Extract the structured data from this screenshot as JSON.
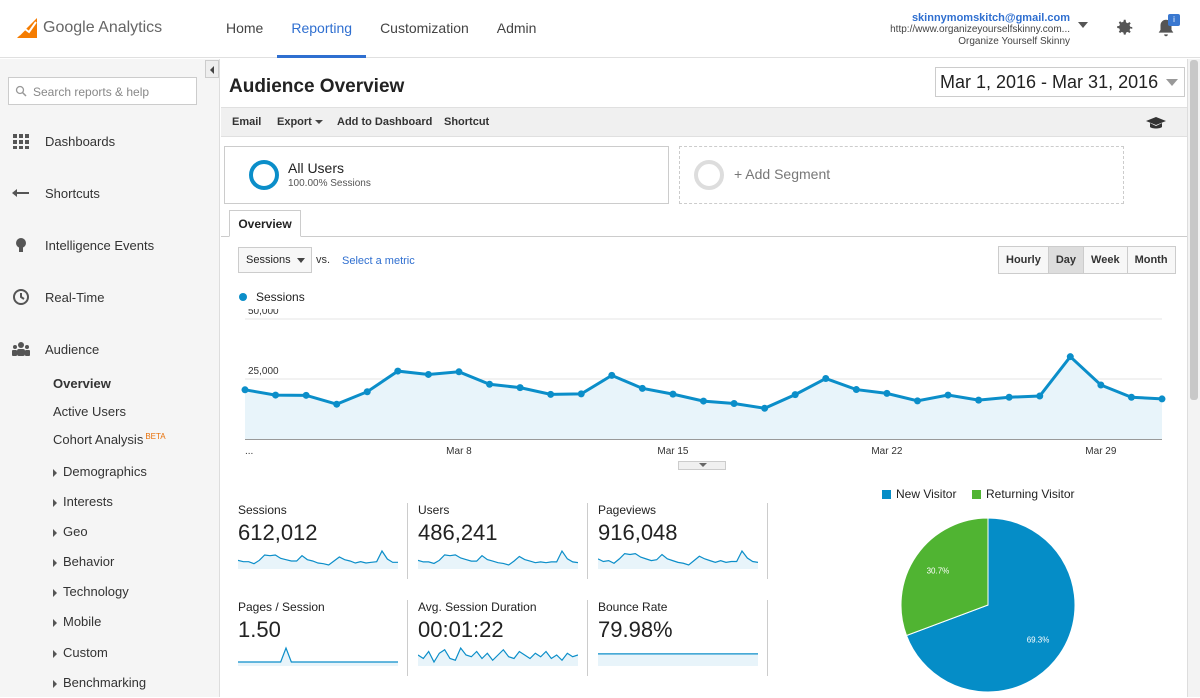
{
  "app": {
    "name": "Google Analytics",
    "tabs": [
      {
        "label": "Home"
      },
      {
        "label": "Reporting"
      },
      {
        "label": "Customization"
      },
      {
        "label": "Admin"
      }
    ]
  },
  "account": {
    "email": "skinnymomskitch@gmail.com",
    "url": "http://www.organizeyourselfskinny.com...",
    "property": "Organize Yourself Skinny"
  },
  "notification": {
    "badge": "i"
  },
  "sidebar": {
    "search_placeholder": "Search reports & help",
    "items": [
      {
        "label": "Dashboards",
        "icon": "grid-icon"
      },
      {
        "label": "Shortcuts",
        "icon": "arrow-left-icon"
      },
      {
        "label": "Intelligence Events",
        "icon": "lightbulb-icon"
      },
      {
        "label": "Real-Time",
        "icon": "clock-icon"
      },
      {
        "label": "Audience",
        "icon": "people-icon"
      }
    ],
    "sub_items": [
      {
        "label": "Overview"
      },
      {
        "label": "Active Users"
      },
      {
        "label": "Cohort Analysis",
        "badge": "BETA"
      },
      {
        "label": "Demographics"
      },
      {
        "label": "Interests"
      },
      {
        "label": "Geo"
      },
      {
        "label": "Behavior"
      },
      {
        "label": "Technology"
      },
      {
        "label": "Mobile"
      },
      {
        "label": "Custom"
      },
      {
        "label": "Benchmarking"
      }
    ]
  },
  "page": {
    "title": "Audience Overview",
    "date_range": "Mar 1, 2016 - Mar 31, 2016"
  },
  "toolbar": {
    "email": "Email",
    "export": "Export",
    "add_to_dashboard": "Add to Dashboard",
    "shortcut": "Shortcut"
  },
  "segments": {
    "active": {
      "name": "All Users",
      "sub": "100.00% Sessions"
    },
    "add_label": "+ Add Segment"
  },
  "tabs": {
    "overview": "Overview"
  },
  "controls": {
    "metric_selected": "Sessions",
    "vs": "vs.",
    "select_metric": "Select a metric",
    "granularity": [
      "Hourly",
      "Day",
      "Week",
      "Month"
    ],
    "granularity_active": "Day"
  },
  "chart_data": [
    {
      "type": "area",
      "series": [
        {
          "name": "Sessions",
          "values": [
            20500,
            18300,
            18200,
            14500,
            19700,
            28300,
            26900,
            28000,
            22800,
            21400,
            18600,
            18800,
            26500,
            21100,
            18700,
            15800,
            14800,
            12800,
            18500,
            25200,
            20600,
            19000,
            15900,
            18300,
            16200,
            17400,
            17900,
            34300,
            22500,
            17400,
            16700
          ]
        }
      ],
      "x_labels": [
        "...",
        "Mar 8",
        "Mar 15",
        "Mar 22",
        "Mar 29"
      ],
      "x_label_days": [
        1,
        8,
        15,
        22,
        29
      ],
      "y_ticks": [
        {
          "value": 50000,
          "label": "50,000"
        },
        {
          "value": 25000,
          "label": "25,000"
        }
      ],
      "ylim": [
        0,
        50000
      ],
      "color": "#0b8ec9",
      "fill": "#e8f4fa"
    },
    {
      "type": "pie",
      "slices": [
        {
          "name": "New Visitor",
          "value": 69.3,
          "label": "69.3%",
          "color": "#058dc7"
        },
        {
          "name": "Returning Visitor",
          "value": 30.7,
          "label": "30.7%",
          "color": "#50b432"
        }
      ]
    }
  ],
  "stats": [
    {
      "label": "Sessions",
      "value": "612,012",
      "spark": [
        20,
        18,
        18,
        15,
        20,
        28,
        27,
        28,
        23,
        21,
        19,
        19,
        27,
        21,
        19,
        16,
        15,
        13,
        19,
        25,
        21,
        19,
        16,
        18,
        16,
        17,
        18,
        34,
        22,
        17,
        17
      ]
    },
    {
      "label": "Users",
      "value": "486,241",
      "spark": [
        19,
        17,
        17,
        15,
        19,
        26,
        25,
        26,
        22,
        20,
        18,
        18,
        25,
        20,
        18,
        16,
        15,
        13,
        18,
        24,
        20,
        18,
        16,
        17,
        16,
        17,
        17,
        31,
        21,
        17,
        16
      ]
    },
    {
      "label": "Pageviews",
      "value": "916,048",
      "spark": [
        21,
        18,
        19,
        16,
        21,
        27,
        26,
        27,
        23,
        21,
        19,
        20,
        26,
        21,
        19,
        17,
        16,
        14,
        19,
        24,
        21,
        19,
        17,
        19,
        17,
        18,
        18,
        30,
        22,
        18,
        17
      ]
    },
    {
      "label": "Pages / Session",
      "value": "1.50",
      "spark": [
        15,
        15,
        15,
        15,
        15,
        15,
        15,
        15,
        15,
        16,
        15,
        15,
        15,
        15,
        15,
        15,
        15,
        15,
        15,
        15,
        15,
        15,
        15,
        15,
        15,
        15,
        15,
        15,
        15,
        15,
        15
      ]
    },
    {
      "label": "Avg. Session Duration",
      "value": "00:01:22",
      "spark": [
        82,
        80,
        84,
        78,
        83,
        85,
        80,
        79,
        86,
        82,
        81,
        84,
        80,
        83,
        79,
        82,
        85,
        81,
        80,
        84,
        82,
        80,
        83,
        81,
        84,
        80,
        82,
        79,
        83,
        81,
        82
      ]
    },
    {
      "label": "Bounce Rate",
      "value": "79.98%",
      "spark": [
        80,
        80,
        80,
        80,
        80,
        80,
        80,
        80,
        80,
        80,
        80,
        80,
        80,
        80,
        80,
        80,
        80,
        80,
        80,
        80,
        80,
        80,
        80,
        80,
        80,
        80,
        80,
        80,
        80,
        80,
        80
      ]
    }
  ]
}
